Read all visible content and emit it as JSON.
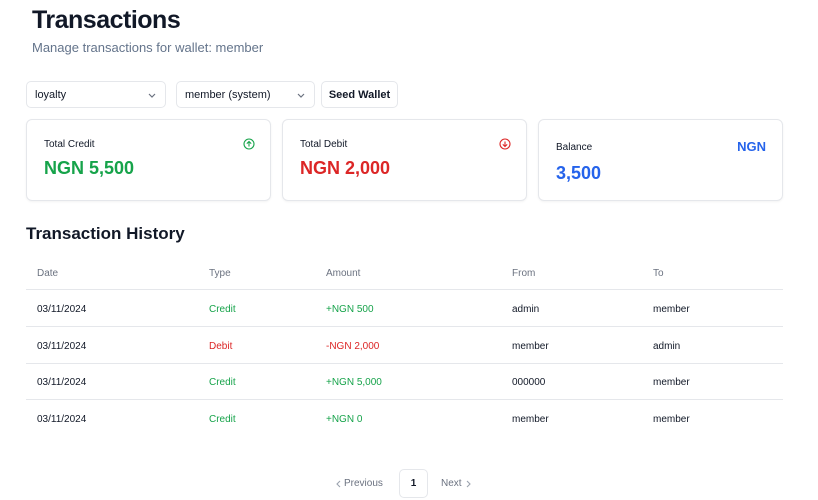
{
  "header": {
    "title": "Transactions",
    "subtitle": "Manage transactions for wallet: member"
  },
  "controls": {
    "wallet_type": "loyalty",
    "wallet": "member (system)",
    "seed_button": "Seed Wallet"
  },
  "cards": [
    {
      "label": "Total Credit",
      "value": "NGN 5,500"
    },
    {
      "label": "Total Debit",
      "value": "NGN 2,000"
    },
    {
      "label": "Balance",
      "value": "3,500",
      "currency": "NGN"
    }
  ],
  "history": {
    "title": "Transaction History",
    "columns": [
      "Date",
      "Type",
      "Amount",
      "From",
      "To"
    ],
    "rows": [
      [
        "03/11/2024",
        "Credit",
        "+NGN 500",
        "admin",
        "member"
      ],
      [
        "03/11/2024",
        "Debit",
        "-NGN 2,000",
        "member",
        "admin"
      ],
      [
        "03/11/2024",
        "Credit",
        "+NGN 5,000",
        "000000",
        "member"
      ],
      [
        "03/11/2024",
        "Credit",
        "+NGN 0",
        "member",
        "member"
      ]
    ]
  },
  "pagination": {
    "previous": "Previous",
    "page": 1,
    "next": "Next"
  }
}
